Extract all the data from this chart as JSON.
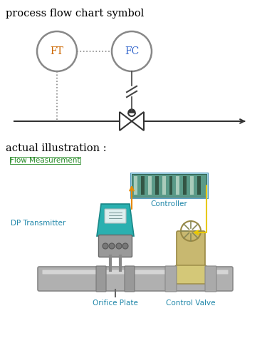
{
  "title_top": "process flow chart symbol",
  "title_bottom": "actual illustration :",
  "ft_label": "FT",
  "fc_label": "FC",
  "flow_meas_label": "Flow Measurement",
  "controller_label": "Controller",
  "dp_transmitter_label": "DP Transmitter",
  "orifice_label": "Orifice Plate",
  "control_valve_label": "Control Valve",
  "bg_color": "#ffffff",
  "text_color": "#000000",
  "circle_edge": "#888888",
  "ft_text_color": "#cc6600",
  "fc_text_color": "#3366cc",
  "pipe_color": "#aaaaaa",
  "pipe_edge": "#888888",
  "teal_color": "#2ab0b0",
  "orange_color": "#e88a00",
  "yellow_color": "#e8c800",
  "green_label_color": "#228822",
  "cyan_label_color": "#2288aa",
  "ctrl_fill": "#7ab8a8",
  "ctrl_edge": "#4488aa",
  "ctrl_stripe_light": "#aaddcc",
  "ctrl_stripe_dark": "#446655",
  "valve_fill": "#c8b870",
  "valve_edge": "#998844"
}
